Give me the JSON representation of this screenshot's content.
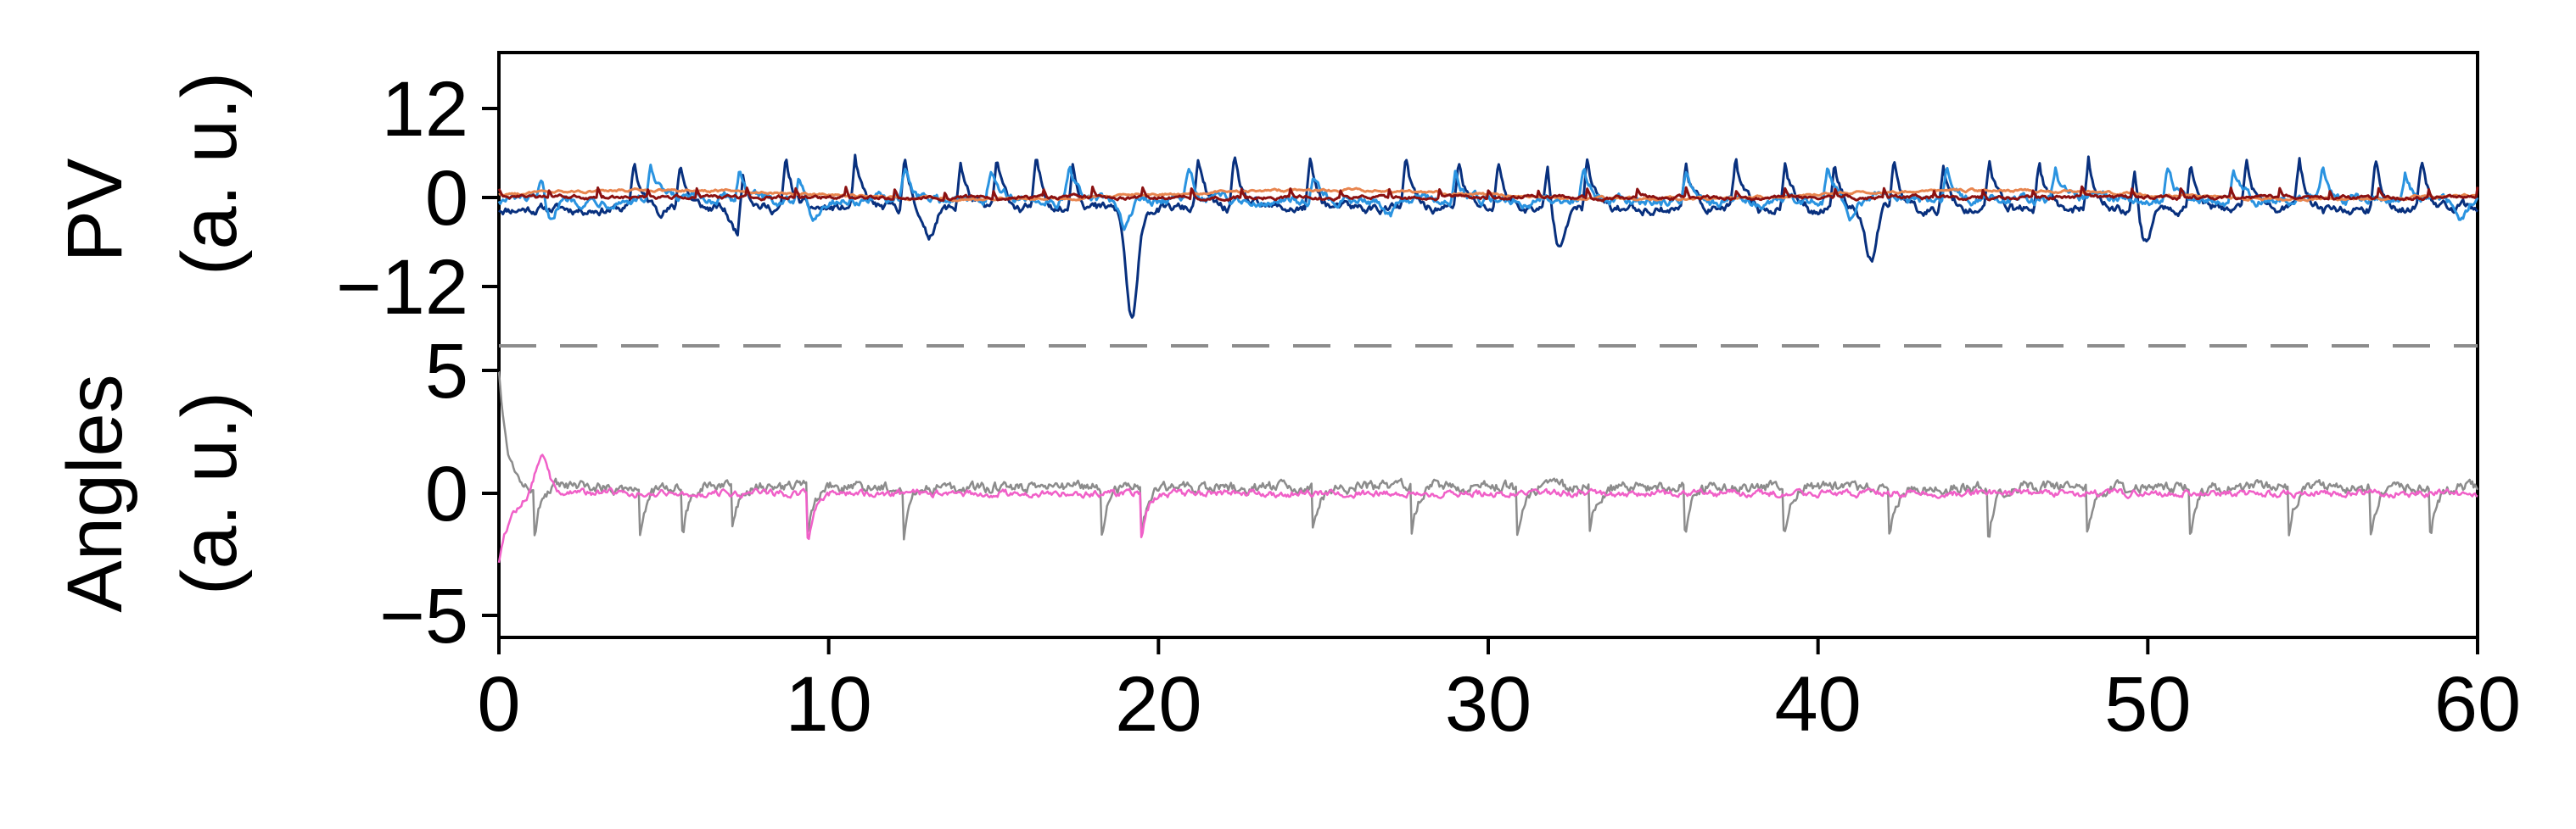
{
  "chart_data": [
    {
      "panel": "top",
      "type": "line",
      "ylabel_line1": "PV",
      "ylabel_line2": "(a. u.)",
      "ylim": [
        -18,
        18
      ],
      "yticks": [
        12,
        0,
        -12
      ],
      "ytick_labels": [
        "12",
        "0",
        "−12"
      ],
      "series": [
        {
          "color": "#08307e",
          "kind": "pulses",
          "baseline": -1.5,
          "noise": 0.9,
          "peak": 6.5,
          "pulses": [
            4.1,
            5.5,
            7.4,
            8.7,
            10.8,
            12.3,
            14.0,
            15.1,
            16.3,
            17.4,
            21.2,
            22.3,
            24.6,
            27.5,
            29.1,
            30.3,
            31.8,
            33.0,
            36.0,
            37.5,
            39.0,
            40.5,
            42.3,
            43.8,
            45.2,
            46.7,
            48.2,
            49.6,
            51.3,
            53.0,
            54.6,
            56.9,
            58.3
          ],
          "dips": [
            [
              19.2,
              -15
            ],
            [
              32.1,
              -6
            ],
            [
              41.6,
              -7
            ],
            [
              49.9,
              -6
            ],
            [
              13.0,
              -4
            ],
            [
              7.2,
              -3
            ]
          ]
        },
        {
          "color": "#2a93e0",
          "kind": "pulses",
          "baseline": -0.3,
          "noise": 0.9,
          "peak": 4.2,
          "pulses": [
            1.3,
            4.6,
            7.3,
            9.1,
            12.3,
            14.9,
            17.3,
            20.9,
            24.7,
            29.0,
            32.9,
            36.0,
            40.3,
            43.9,
            47.2,
            50.6,
            52.6,
            55.3,
            57.8
          ],
          "dips": [
            [
              1.5,
              -4
            ],
            [
              9.5,
              -3
            ],
            [
              19.0,
              -3.5
            ],
            [
              27.0,
              -2.5
            ],
            [
              41.0,
              -2.5
            ],
            [
              59.5,
              -3
            ]
          ]
        },
        {
          "color": "#e8854f",
          "kind": "slow",
          "baseline": 0.4,
          "noise": 0.25,
          "amp": 0.6,
          "period": 20.0
        },
        {
          "color": "#8b1111",
          "kind": "spiky",
          "baseline": 0.0,
          "noise": 0.35,
          "spike": 1.2
        }
      ]
    },
    {
      "panel": "bottom",
      "type": "line",
      "ylabel_line1": "Angles",
      "ylabel_line2": "(a. u.)",
      "ylim": [
        -6,
        6
      ],
      "yticks": [
        5,
        0,
        -5
      ],
      "ytick_labels": [
        "5",
        "0",
        "−5"
      ],
      "series": [
        {
          "color": "#8c8c8c",
          "kind": "angle",
          "start": 5.0,
          "tau": 0.25,
          "baseline": 0.25,
          "noise": 0.35,
          "dips": [
            1.1,
            4.3,
            5.6,
            7.1,
            9.4,
            12.3,
            18.3,
            19.5,
            24.7,
            27.7,
            30.9,
            33.1,
            36.0,
            39.0,
            42.2,
            45.2,
            48.2,
            51.3,
            54.3,
            56.8,
            58.6
          ]
        },
        {
          "color": "#f060c8",
          "kind": "angle",
          "start": -2.8,
          "tau": 0.35,
          "baseline": 0.0,
          "noise": 0.22,
          "overshoot": 1.6,
          "dips": [
            9.4,
            19.5
          ]
        }
      ]
    }
  ],
  "xlim": [
    0,
    60
  ],
  "xticks": [
    0,
    10,
    20,
    30,
    40,
    50,
    60
  ],
  "xtick_labels": [
    "0",
    "10",
    "20",
    "30",
    "40",
    "50",
    "60"
  ],
  "grid": false,
  "divider_color": "#8c8c8c"
}
